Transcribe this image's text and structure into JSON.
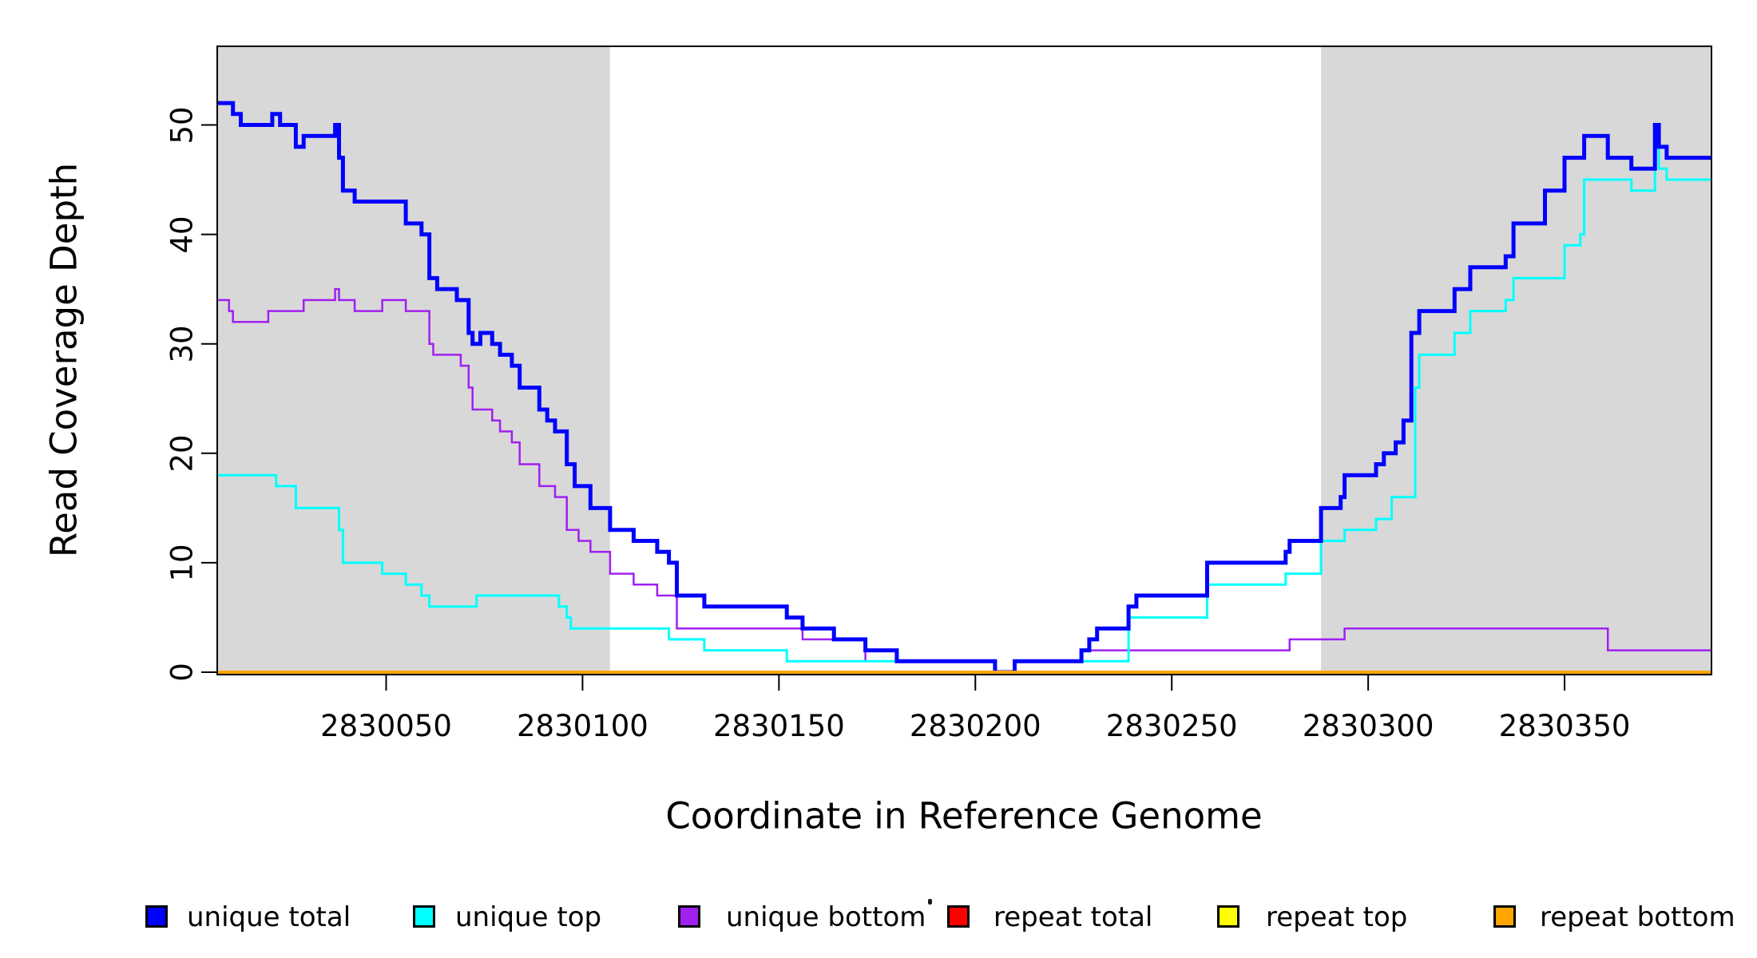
{
  "page": {
    "background": "#FFFFFF"
  },
  "chart_data": {
    "type": "line",
    "step_mode": "after",
    "title": "",
    "xlabel": "Coordinate in Reference Genome",
    "ylabel": "Read Coverage Depth",
    "xlim": [
      2830007,
      2830387.4
    ],
    "ylim": [
      0,
      57.2
    ],
    "x_ticks": [
      2830050,
      2830100,
      2830150,
      2830200,
      2830250,
      2830300,
      2830350
    ],
    "y_ticks": [
      0,
      10,
      20,
      30,
      40,
      50
    ],
    "grid": false,
    "legend_position": "bottom-horizontal",
    "box_color": "#000000",
    "shaded_regions": [
      {
        "name": "left-gray-band",
        "x0": 2830007,
        "x1": 2830107,
        "color": "#D8D8D8"
      },
      {
        "name": "right-gray-band",
        "x0": 2830288,
        "x1": 2830387.4,
        "color": "#D8D8D8"
      }
    ],
    "series": [
      {
        "name": "repeat total",
        "color": "#FF0000",
        "width": 3,
        "points": [
          [
            2830007,
            0
          ],
          [
            2830387.4,
            0
          ]
        ]
      },
      {
        "name": "repeat top",
        "color": "#FFFF00",
        "width": 3,
        "points": [
          [
            2830007,
            0
          ],
          [
            2830387.4,
            0
          ]
        ]
      },
      {
        "name": "unique bottom",
        "color": "#A020F0",
        "width": 2.5,
        "points": [
          [
            2830007,
            34
          ],
          [
            2830010,
            33
          ],
          [
            2830011,
            32
          ],
          [
            2830020,
            33
          ],
          [
            2830029,
            34
          ],
          [
            2830037,
            35
          ],
          [
            2830038,
            34
          ],
          [
            2830042,
            33
          ],
          [
            2830049,
            34
          ],
          [
            2830055,
            33
          ],
          [
            2830061,
            30
          ],
          [
            2830062,
            29
          ],
          [
            2830069,
            28
          ],
          [
            2830071,
            26
          ],
          [
            2830072,
            24
          ],
          [
            2830077,
            23
          ],
          [
            2830079,
            22
          ],
          [
            2830082,
            21
          ],
          [
            2830084,
            19
          ],
          [
            2830089,
            17
          ],
          [
            2830093,
            16
          ],
          [
            2830096,
            13
          ],
          [
            2830099,
            12
          ],
          [
            2830102,
            11
          ],
          [
            2830107,
            9
          ],
          [
            2830113,
            8
          ],
          [
            2830119,
            7
          ],
          [
            2830124,
            4
          ],
          [
            2830156,
            3
          ],
          [
            2830172,
            1
          ],
          [
            2830205,
            0
          ],
          [
            2830210,
            1
          ],
          [
            2830227,
            2
          ],
          [
            2830280,
            3
          ],
          [
            2830294,
            4
          ],
          [
            2830361,
            2
          ],
          [
            2830387.4,
            2
          ]
        ]
      },
      {
        "name": "unique top",
        "color": "#00FFFF",
        "width": 3,
        "points": [
          [
            2830007,
            18
          ],
          [
            2830022,
            17
          ],
          [
            2830027,
            15
          ],
          [
            2830038,
            13
          ],
          [
            2830039,
            10
          ],
          [
            2830049,
            9
          ],
          [
            2830055,
            8
          ],
          [
            2830059,
            7
          ],
          [
            2830061,
            6
          ],
          [
            2830073,
            7
          ],
          [
            2830094,
            6
          ],
          [
            2830096,
            5
          ],
          [
            2830097,
            4
          ],
          [
            2830122,
            3
          ],
          [
            2830131,
            2
          ],
          [
            2830152,
            1
          ],
          [
            2830205,
            0
          ],
          [
            2830210,
            1
          ],
          [
            2830239,
            5
          ],
          [
            2830259,
            8
          ],
          [
            2830279,
            9
          ],
          [
            2830288,
            12
          ],
          [
            2830294,
            13
          ],
          [
            2830302,
            14
          ],
          [
            2830306,
            16
          ],
          [
            2830312,
            26
          ],
          [
            2830313,
            29
          ],
          [
            2830322,
            31
          ],
          [
            2830326,
            33
          ],
          [
            2830335,
            34
          ],
          [
            2830337,
            36
          ],
          [
            2830350,
            39
          ],
          [
            2830354,
            40
          ],
          [
            2830355,
            45
          ],
          [
            2830367,
            44
          ],
          [
            2830373,
            48
          ],
          [
            2830374,
            46
          ],
          [
            2830376,
            45
          ],
          [
            2830387.4,
            45
          ]
        ]
      },
      {
        "name": "unique total",
        "color": "#0000FF",
        "width": 5,
        "points": [
          [
            2830007,
            52
          ],
          [
            2830011,
            51
          ],
          [
            2830013,
            50
          ],
          [
            2830021,
            51
          ],
          [
            2830023,
            50
          ],
          [
            2830027,
            48
          ],
          [
            2830029,
            49
          ],
          [
            2830037,
            50
          ],
          [
            2830038,
            47
          ],
          [
            2830039,
            44
          ],
          [
            2830042,
            43
          ],
          [
            2830055,
            41
          ],
          [
            2830059,
            40
          ],
          [
            2830061,
            36
          ],
          [
            2830063,
            35
          ],
          [
            2830068,
            34
          ],
          [
            2830071,
            31
          ],
          [
            2830072,
            30
          ],
          [
            2830074,
            31
          ],
          [
            2830077,
            30
          ],
          [
            2830079,
            29
          ],
          [
            2830082,
            28
          ],
          [
            2830084,
            26
          ],
          [
            2830089,
            24
          ],
          [
            2830091,
            23
          ],
          [
            2830093,
            22
          ],
          [
            2830096,
            19
          ],
          [
            2830098,
            17
          ],
          [
            2830102,
            15
          ],
          [
            2830107,
            13
          ],
          [
            2830113,
            12
          ],
          [
            2830119,
            11
          ],
          [
            2830122,
            10
          ],
          [
            2830124,
            7
          ],
          [
            2830131,
            6
          ],
          [
            2830152,
            5
          ],
          [
            2830156,
            4
          ],
          [
            2830164,
            3
          ],
          [
            2830172,
            2
          ],
          [
            2830180,
            1
          ],
          [
            2830205,
            0
          ],
          [
            2830210,
            1
          ],
          [
            2830227,
            2
          ],
          [
            2830229,
            3
          ],
          [
            2830231,
            4
          ],
          [
            2830239,
            6
          ],
          [
            2830241,
            7
          ],
          [
            2830259,
            10
          ],
          [
            2830279,
            11
          ],
          [
            2830280,
            12
          ],
          [
            2830288,
            15
          ],
          [
            2830293,
            16
          ],
          [
            2830294,
            18
          ],
          [
            2830302,
            19
          ],
          [
            2830304,
            20
          ],
          [
            2830307,
            21
          ],
          [
            2830309,
            23
          ],
          [
            2830311,
            31
          ],
          [
            2830313,
            33
          ],
          [
            2830322,
            35
          ],
          [
            2830326,
            37
          ],
          [
            2830335,
            38
          ],
          [
            2830337,
            41
          ],
          [
            2830345,
            44
          ],
          [
            2830350,
            47
          ],
          [
            2830355,
            49
          ],
          [
            2830361,
            47
          ],
          [
            2830367,
            46
          ],
          [
            2830373,
            50
          ],
          [
            2830374,
            48
          ],
          [
            2830376,
            47
          ],
          [
            2830387.4,
            47
          ]
        ]
      },
      {
        "name": "repeat bottom",
        "color": "#FFA500",
        "width": 4,
        "points": [
          [
            2830007,
            0
          ],
          [
            2830387.4,
            0
          ]
        ]
      }
    ]
  },
  "legend": {
    "items": [
      {
        "label": "unique total",
        "color": "#0000FF"
      },
      {
        "label": "unique top",
        "color": "#00FFFF"
      },
      {
        "label": "unique bottom",
        "color": "#A020F0"
      },
      {
        "label": "repeat total",
        "color": "#FF0000"
      },
      {
        "label": "repeat top",
        "color": "#FFFF00"
      },
      {
        "label": "repeat bottom",
        "color": "#FFA500"
      }
    ],
    "stray_mark": "·"
  }
}
